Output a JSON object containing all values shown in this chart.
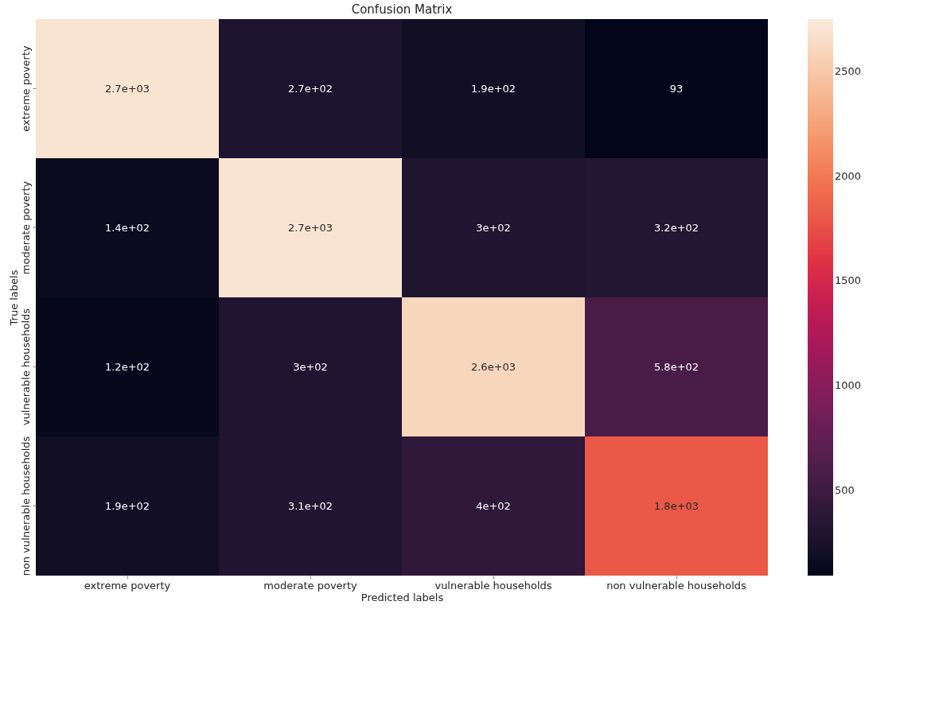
{
  "chart_data": {
    "type": "heatmap",
    "title": "Confusion Matrix",
    "xlabel": "Predicted labels",
    "ylabel": "True labels",
    "categories": [
      "extreme poverty",
      "moderate poverty",
      "vulnerable households",
      "non vulnerable households"
    ],
    "y_categories": [
      "extreme poverty",
      "moderate poverty",
      "vulnerable households",
      "non vulnerable households"
    ],
    "cells": [
      [
        2700,
        270,
        190,
        93
      ],
      [
        140,
        2700,
        300,
        320
      ],
      [
        120,
        300,
        2600,
        580
      ],
      [
        190,
        310,
        400,
        1800
      ]
    ],
    "cell_labels": [
      [
        "2.7e+03",
        "2.7e+02",
        "1.9e+02",
        "93"
      ],
      [
        "1.4e+02",
        "2.7e+03",
        "3e+02",
        "3.2e+02"
      ],
      [
        "1.2e+02",
        "3e+02",
        "2.6e+03",
        "5.8e+02"
      ],
      [
        "1.9e+02",
        "3.1e+02",
        "4e+02",
        "1.8e+03"
      ]
    ],
    "clim": [
      93,
      2750
    ],
    "cticks": [
      500,
      1000,
      1500,
      2000,
      2500
    ]
  }
}
